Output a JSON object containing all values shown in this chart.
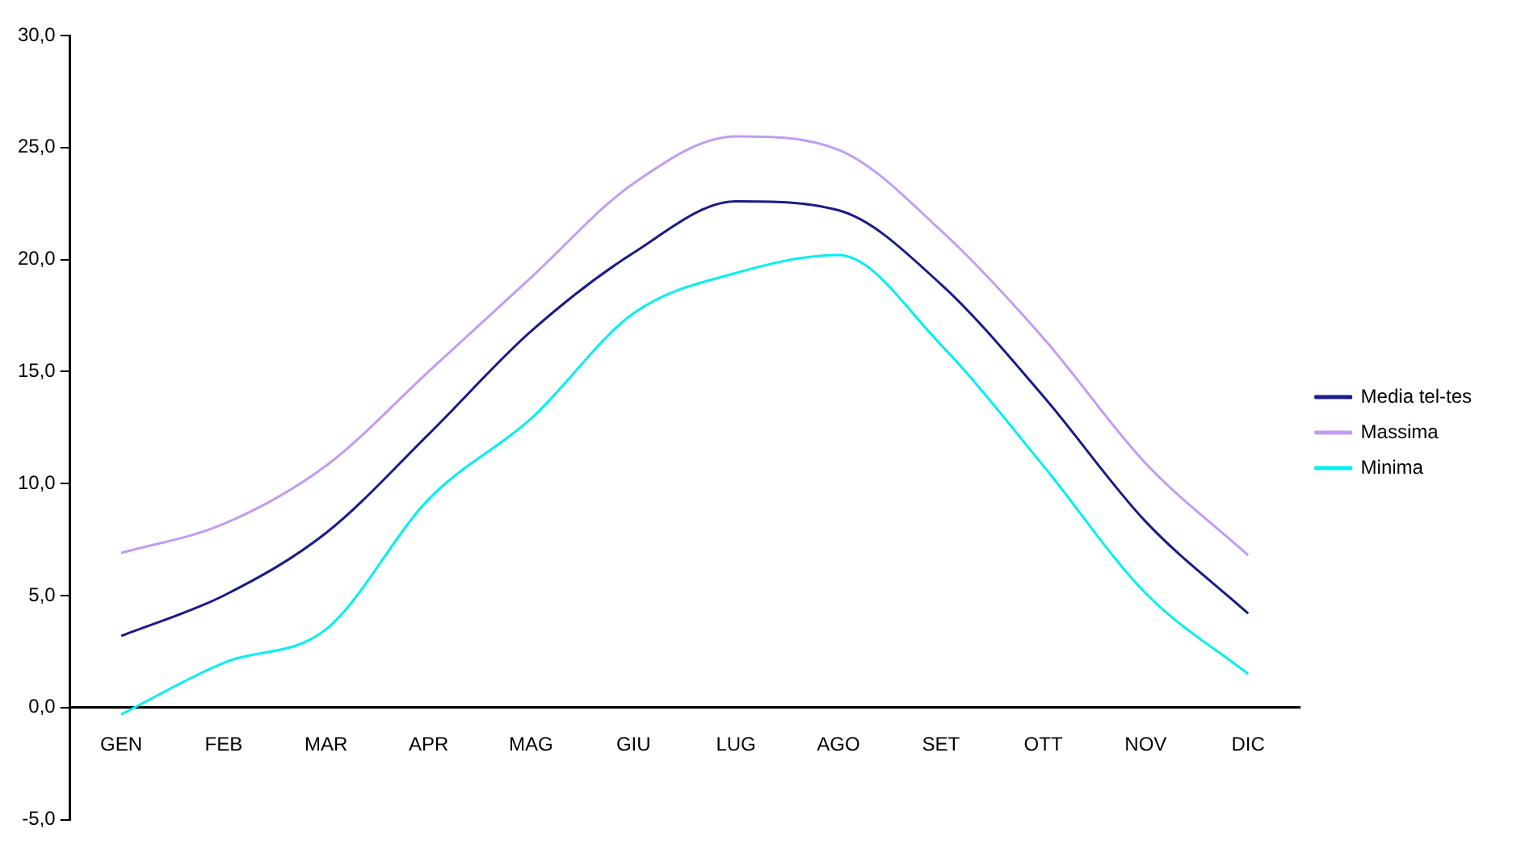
{
  "chart_data": {
    "type": "line",
    "categories": [
      "GEN",
      "FEB",
      "MAR",
      "APR",
      "MAG",
      "GIU",
      "LUG",
      "AGO",
      "SET",
      "OTT",
      "NOV",
      "DIC"
    ],
    "series": [
      {
        "name": "Media tel-tes",
        "color": "#1a1a8c",
        "values": [
          3.2,
          5.0,
          7.8,
          12.2,
          16.8,
          20.3,
          22.6,
          22.2,
          18.9,
          13.9,
          8.3,
          4.2
        ]
      },
      {
        "name": "Massima",
        "color": "#c39bf5",
        "values": [
          6.9,
          8.2,
          10.8,
          15.0,
          19.2,
          23.4,
          25.5,
          24.9,
          21.3,
          16.5,
          10.9,
          6.8
        ]
      },
      {
        "name": "Minima",
        "color": "#00f0f0",
        "values": [
          -0.3,
          2.0,
          3.5,
          9.3,
          12.9,
          17.6,
          19.4,
          20.2,
          16.2,
          10.8,
          5.1,
          1.5
        ]
      }
    ],
    "ylim": [
      -5,
      30
    ],
    "yticks": [
      {
        "value": -5,
        "label": "-5,0"
      },
      {
        "value": 0,
        "label": "0,0"
      },
      {
        "value": 5,
        "label": "5,0"
      },
      {
        "value": 10,
        "label": "10,0"
      },
      {
        "value": 15,
        "label": "15,0"
      },
      {
        "value": 20,
        "label": "20,0"
      },
      {
        "value": 25,
        "label": "25,0"
      },
      {
        "value": 30,
        "label": "30,0"
      }
    ],
    "grid": false,
    "legend": "right",
    "marker": "none",
    "line_style": "solid"
  }
}
